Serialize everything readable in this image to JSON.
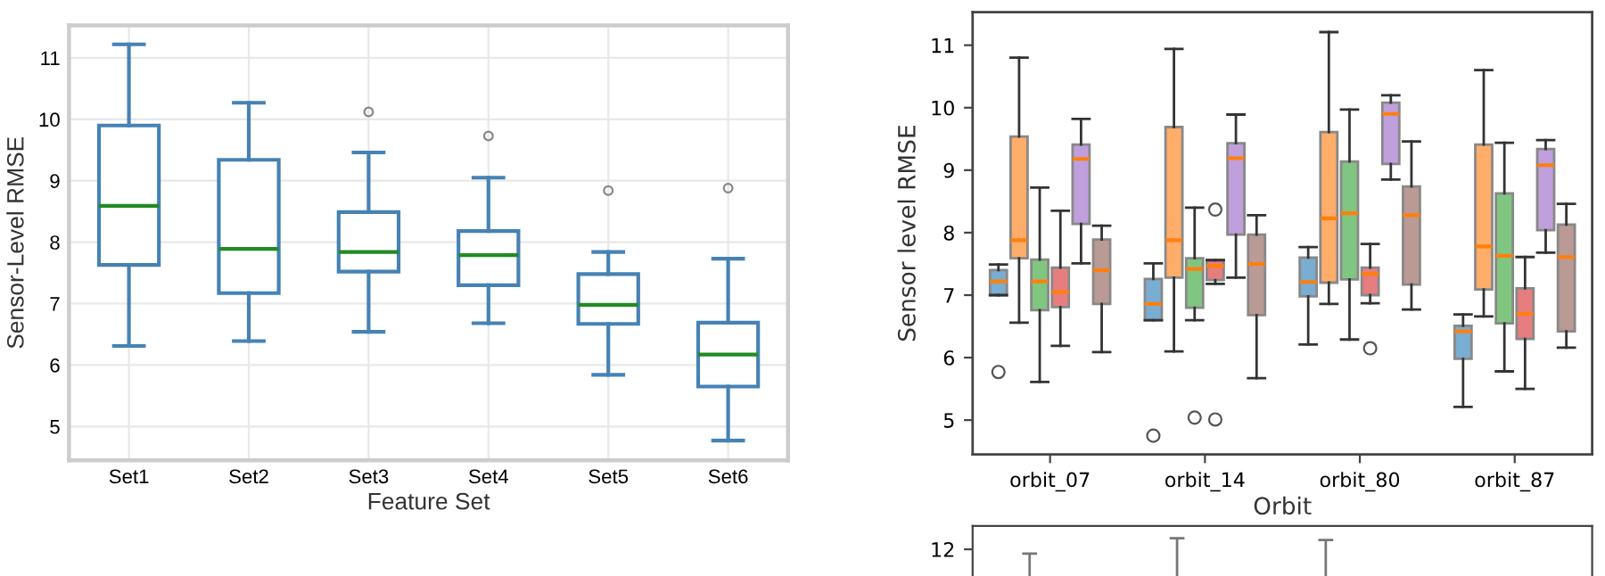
{
  "chart_data": [
    {
      "type": "box",
      "xlabel": "Feature Set",
      "ylabel": "Sensor-Level RMSE",
      "categories": [
        "Set1",
        "Set2",
        "Set3",
        "Set4",
        "Set5",
        "Set6"
      ],
      "ylim": [
        4.45,
        11.53
      ],
      "yticks": [
        5,
        6,
        7,
        8,
        9,
        10,
        11
      ],
      "grid": true,
      "series": [
        {
          "color": "#4682b4",
          "boxes": [
            {
              "low": 6.31,
              "q1": 7.63,
              "median": 8.59,
              "q3": 9.9,
              "high": 11.22
            },
            {
              "low": 6.39,
              "q1": 7.17,
              "median": 7.89,
              "q3": 9.34,
              "high": 10.27
            },
            {
              "low": 6.54,
              "q1": 7.52,
              "median": 7.84,
              "q3": 8.49,
              "high": 9.46,
              "outliers": [
                10.12
              ]
            },
            {
              "low": 6.68,
              "q1": 7.3,
              "median": 7.79,
              "q3": 8.18,
              "high": 9.05,
              "outliers": [
                9.73
              ]
            },
            {
              "low": 5.84,
              "q1": 6.67,
              "median": 6.98,
              "q3": 7.48,
              "high": 7.84,
              "outliers": [
                8.84
              ]
            },
            {
              "low": 4.77,
              "q1": 5.65,
              "median": 6.17,
              "q3": 6.69,
              "high": 7.73,
              "outliers": [
                8.88
              ]
            }
          ]
        }
      ]
    },
    {
      "type": "box",
      "xlabel": "Orbit",
      "ylabel": "Sensor level RMSE",
      "categories": [
        "orbit_07",
        "orbit_14",
        "orbit_80",
        "orbit_87"
      ],
      "ylim": [
        4.45,
        11.53
      ],
      "yticks": [
        5,
        6,
        7,
        8,
        9,
        10,
        11
      ],
      "grid": false,
      "series": [
        {
          "color": "#79add2",
          "boxes": [
            {
              "low": 7.0,
              "q1": 7.0,
              "median": 7.22,
              "q3": 7.4,
              "high": 7.49,
              "outliers": [
                5.77
              ]
            },
            {
              "low": 6.6,
              "q1": 6.6,
              "median": 6.86,
              "q3": 7.26,
              "high": 7.51,
              "outliers": [
                4.75
              ]
            },
            {
              "low": 6.21,
              "q1": 6.98,
              "median": 7.21,
              "q3": 7.6,
              "high": 7.77
            },
            {
              "low": 5.21,
              "q1": 5.98,
              "median": 6.42,
              "q3": 6.51,
              "high": 6.69
            }
          ]
        },
        {
          "color": "#ffad6a",
          "boxes": [
            {
              "low": 6.56,
              "q1": 7.59,
              "median": 7.88,
              "q3": 9.54,
              "high": 10.8
            },
            {
              "low": 6.1,
              "q1": 7.28,
              "median": 7.88,
              "q3": 9.69,
              "high": 10.94
            },
            {
              "low": 6.86,
              "q1": 7.2,
              "median": 8.23,
              "q3": 9.61,
              "high": 11.21
            },
            {
              "low": 6.66,
              "q1": 7.09,
              "median": 7.78,
              "q3": 9.41,
              "high": 10.6
            }
          ]
        },
        {
          "color": "#80c680",
          "boxes": [
            {
              "low": 5.61,
              "q1": 6.76,
              "median": 7.22,
              "q3": 7.57,
              "high": 8.72
            },
            {
              "low": 6.6,
              "q1": 6.8,
              "median": 7.42,
              "q3": 7.59,
              "high": 8.4,
              "outliers": [
                5.04
              ]
            },
            {
              "low": 6.29,
              "q1": 7.25,
              "median": 8.31,
              "q3": 9.14,
              "high": 9.97
            },
            {
              "low": 5.78,
              "q1": 6.55,
              "median": 7.63,
              "q3": 8.63,
              "high": 9.44
            }
          ]
        },
        {
          "color": "#e67d7e",
          "boxes": [
            {
              "low": 6.19,
              "q1": 6.81,
              "median": 7.05,
              "q3": 7.44,
              "high": 8.35
            },
            {
              "low": 7.18,
              "q1": 7.24,
              "median": 7.47,
              "q3": 7.56,
              "high": 7.56,
              "outliers": [
                8.37,
                5.01
              ]
            },
            {
              "low": 6.87,
              "q1": 7.0,
              "median": 7.34,
              "q3": 7.44,
              "high": 7.82,
              "outliers": [
                6.15
              ]
            },
            {
              "low": 5.5,
              "q1": 6.3,
              "median": 6.7,
              "q3": 7.11,
              "high": 7.61
            }
          ]
        },
        {
          "color": "#bf9fdc",
          "boxes": [
            {
              "low": 7.51,
              "q1": 8.14,
              "median": 9.18,
              "q3": 9.41,
              "high": 9.82
            },
            {
              "low": 7.28,
              "q1": 7.97,
              "median": 9.19,
              "q3": 9.43,
              "high": 9.89
            },
            {
              "low": 8.85,
              "q1": 9.1,
              "median": 9.9,
              "q3": 10.08,
              "high": 10.2
            },
            {
              "low": 7.68,
              "q1": 8.04,
              "median": 9.08,
              "q3": 9.34,
              "high": 9.48
            }
          ]
        },
        {
          "color": "#ba9a94",
          "boxes": [
            {
              "low": 6.09,
              "q1": 6.86,
              "median": 7.4,
              "q3": 7.89,
              "high": 8.11
            },
            {
              "low": 5.67,
              "q1": 6.68,
              "median": 7.5,
              "q3": 7.97,
              "high": 8.28
            },
            {
              "low": 6.77,
              "q1": 7.17,
              "median": 8.28,
              "q3": 8.74,
              "high": 9.46
            },
            {
              "low": 6.16,
              "q1": 6.42,
              "median": 7.61,
              "q3": 8.13,
              "high": 8.46
            }
          ]
        }
      ]
    },
    {
      "type": "other",
      "annotations": [
        "12"
      ]
    }
  ]
}
